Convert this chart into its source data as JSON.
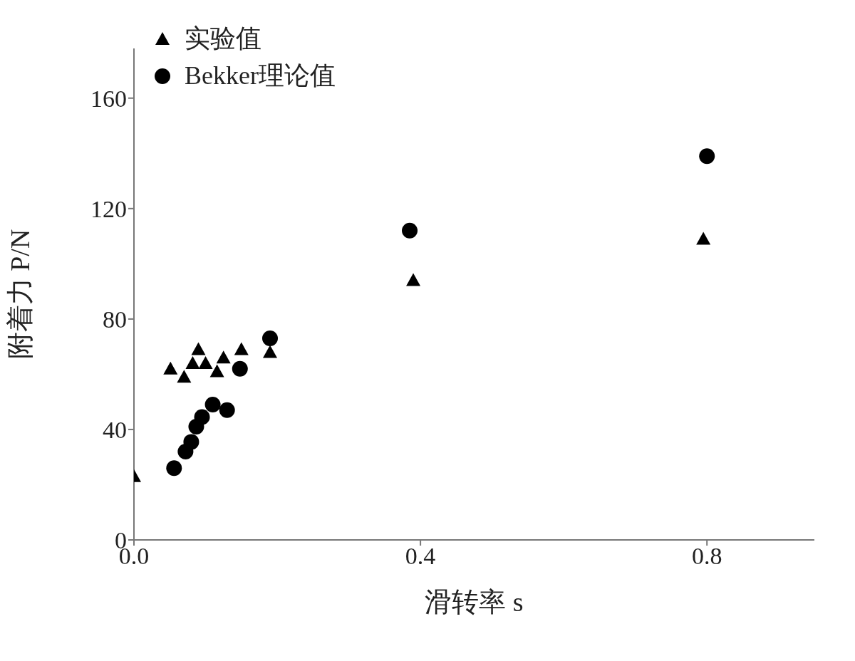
{
  "chart_data": {
    "type": "scatter",
    "xlabel": "滑转率 s",
    "ylabel": "附着力 P/N",
    "xlim": [
      0,
      0.95
    ],
    "xticks": [
      {
        "value": 0,
        "label": "0.0"
      },
      0.4,
      0.8
    ],
    "ylim": [
      0,
      178
    ],
    "yticks": [
      0,
      40,
      80,
      120,
      160
    ],
    "grid": false,
    "legend": "top left",
    "series": [
      {
        "name": "实验值",
        "color": "#000000",
        "marker": "triangle",
        "x": [
          0,
          0.051,
          0.07,
          0.09,
          0.082,
          0.1,
          0.116,
          0.125,
          0.15,
          0.19,
          0.39,
          0.795
        ],
        "values": [
          23,
          62,
          59,
          69,
          64,
          64,
          61,
          66,
          69,
          68,
          94,
          109
        ]
      },
      {
        "name": "Bekker理论值",
        "color": "#000000",
        "marker": "circle",
        "x": [
          0.056,
          0.072,
          0.08,
          0.087,
          0.095,
          0.11,
          0.13,
          0.148,
          0.19,
          0.385,
          0.8
        ],
        "values": [
          26,
          32,
          35.5,
          41,
          44.5,
          49,
          47,
          62,
          73,
          112,
          139
        ]
      }
    ]
  }
}
